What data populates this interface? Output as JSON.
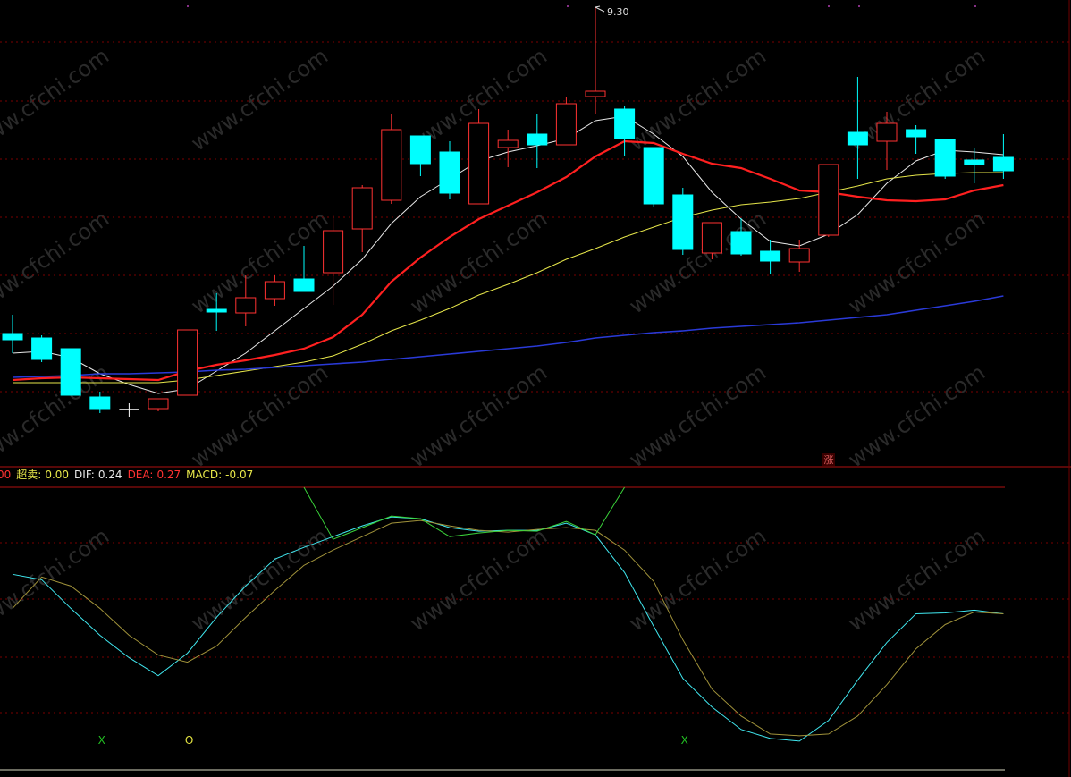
{
  "chart_data": [
    {
      "type": "candlestick",
      "up_color": "#ff3232",
      "down_color": "#00ffff",
      "flat_color": "#ffffff",
      "ylim": [
        6.74,
        9.34
      ],
      "open": [
        7.475,
        7.45,
        7.39,
        7.12,
        7.05,
        7.055,
        7.13,
        7.61,
        7.59,
        7.67,
        7.78,
        7.815,
        8.06,
        8.22,
        8.58,
        8.49,
        8.2,
        8.515,
        8.59,
        8.53,
        8.8,
        8.73,
        8.515,
        8.25,
        7.925,
        8.045,
        7.935,
        7.875,
        8.025,
        8.6,
        8.55,
        8.615,
        8.56,
        8.445,
        8.46
      ],
      "high": [
        7.58,
        7.465,
        7.39,
        7.15,
        7.085,
        7.11,
        7.495,
        7.7,
        7.8,
        7.8,
        7.965,
        8.14,
        8.305,
        8.7,
        8.58,
        8.55,
        8.73,
        8.615,
        8.7,
        8.8,
        9.3,
        8.75,
        8.515,
        8.29,
        8.095,
        8.12,
        8.0,
        8.0,
        8.42,
        8.91,
        8.715,
        8.64,
        8.56,
        8.515,
        8.59
      ],
      "low": [
        7.365,
        7.315,
        7.13,
        7.03,
        7.01,
        7.04,
        7.13,
        7.49,
        7.515,
        7.63,
        7.71,
        7.635,
        7.93,
        8.2,
        8.355,
        8.225,
        8.2,
        8.405,
        8.4,
        8.53,
        8.7,
        8.465,
        8.18,
        7.915,
        7.89,
        7.91,
        7.81,
        7.82,
        8.015,
        8.34,
        8.39,
        8.48,
        8.34,
        8.315,
        8.34
      ],
      "close": [
        7.44,
        7.33,
        7.13,
        7.055,
        7.05,
        7.11,
        7.495,
        7.595,
        7.675,
        7.765,
        7.71,
        8.05,
        8.29,
        8.615,
        8.425,
        8.26,
        8.65,
        8.555,
        8.53,
        8.76,
        8.83,
        8.565,
        8.2,
        7.945,
        8.095,
        7.92,
        7.88,
        7.95,
        8.42,
        8.53,
        8.65,
        8.575,
        8.355,
        8.42,
        8.385
      ],
      "high_label": "9.30",
      "series": [
        {
          "color": "#e8e8e8",
          "width": 1,
          "values": [
            7.365,
            7.375,
            7.34,
            7.25,
            7.19,
            7.14,
            7.165,
            7.265,
            7.365,
            7.49,
            7.615,
            7.74,
            7.89,
            8.09,
            8.24,
            8.34,
            8.44,
            8.49,
            8.525,
            8.565,
            8.665,
            8.69,
            8.59,
            8.465,
            8.265,
            8.115,
            7.99,
            7.965,
            8.03,
            8.14,
            8.315,
            8.44,
            8.5,
            8.49,
            8.475
          ]
        },
        {
          "color": "#ff2020",
          "width": 2.2,
          "values": [
            7.215,
            7.225,
            7.23,
            7.225,
            7.22,
            7.215,
            7.265,
            7.3,
            7.325,
            7.355,
            7.39,
            7.455,
            7.58,
            7.765,
            7.9,
            8.015,
            8.115,
            8.19,
            8.265,
            8.35,
            8.465,
            8.55,
            8.54,
            8.48,
            8.425,
            8.4,
            8.34,
            8.275,
            8.265,
            8.24,
            8.22,
            8.215,
            8.225,
            8.275,
            8.305
          ]
        },
        {
          "color": "#e6e64a",
          "width": 1,
          "values": [
            7.2,
            7.2,
            7.2,
            7.2,
            7.2,
            7.2,
            7.215,
            7.24,
            7.265,
            7.29,
            7.315,
            7.35,
            7.415,
            7.49,
            7.55,
            7.615,
            7.69,
            7.75,
            7.815,
            7.89,
            7.95,
            8.015,
            8.07,
            8.125,
            8.165,
            8.195,
            8.21,
            8.23,
            8.265,
            8.3,
            8.34,
            8.36,
            8.37,
            8.375,
            8.375
          ]
        },
        {
          "color": "#2a3ad8",
          "width": 1.6,
          "values": [
            7.23,
            7.235,
            7.24,
            7.25,
            7.25,
            7.255,
            7.26,
            7.27,
            7.275,
            7.285,
            7.295,
            7.305,
            7.315,
            7.33,
            7.345,
            7.36,
            7.375,
            7.39,
            7.405,
            7.425,
            7.45,
            7.465,
            7.48,
            7.49,
            7.505,
            7.515,
            7.525,
            7.535,
            7.55,
            7.565,
            7.58,
            7.605,
            7.63,
            7.655,
            7.685
          ]
        }
      ]
    },
    {
      "type": "line",
      "ylim": [
        0,
        315
      ],
      "series": [
        {
          "color": "#40e8f0",
          "values": [
            218,
            212,
            180,
            150,
            125,
            105,
            130,
            170,
            205,
            235,
            248,
            260,
            272,
            282,
            280,
            270,
            266,
            267,
            267,
            275,
            262,
            220,
            160,
            102,
            70,
            45,
            35,
            32,
            55,
            100,
            142,
            174,
            175,
            178,
            174
          ]
        },
        {
          "color": "#a0923a",
          "values": [
            180,
            215,
            205,
            180,
            150,
            128,
            120,
            138,
            170,
            200,
            228,
            245,
            260,
            275,
            278,
            272,
            267,
            265,
            268,
            270,
            267,
            245,
            210,
            145,
            90,
            60,
            40,
            38,
            40,
            60,
            95,
            135,
            162,
            176,
            174
          ]
        },
        {
          "color": "#3ad33a",
          "values": [
            null,
            null,
            null,
            null,
            null,
            null,
            null,
            null,
            null,
            null,
            315,
            257,
            270,
            283,
            280,
            260,
            264,
            267,
            266,
            277,
            262,
            315,
            null,
            null,
            null,
            null,
            null,
            null,
            null,
            null,
            null,
            null,
            null,
            null,
            null
          ]
        }
      ],
      "signals": [
        null,
        null,
        null,
        "X",
        null,
        null,
        "O",
        null,
        null,
        null,
        null,
        null,
        null,
        null,
        null,
        null,
        null,
        null,
        null,
        null,
        null,
        null,
        null,
        "X",
        null,
        null,
        null,
        null,
        null,
        null,
        null,
        null,
        null,
        null,
        null
      ],
      "signal_colors": {
        "X": "#22c022",
        "O": "#e0e040"
      }
    }
  ],
  "header": {
    "lead": "00",
    "lead_color": "#ff3232",
    "items": [
      {
        "label": "超卖:",
        "value": "0.00",
        "color": "#e8e84a"
      },
      {
        "label": "DIF:",
        "value": "0.24",
        "color": "#e8e8e8"
      },
      {
        "label": "DEA:",
        "value": "0.27",
        "color": "#ff3232"
      },
      {
        "label": "MACD:",
        "value": "-0.07",
        "color": "#e8e84a"
      }
    ]
  },
  "badge": "涨",
  "watermark": "www.cfchi.com"
}
